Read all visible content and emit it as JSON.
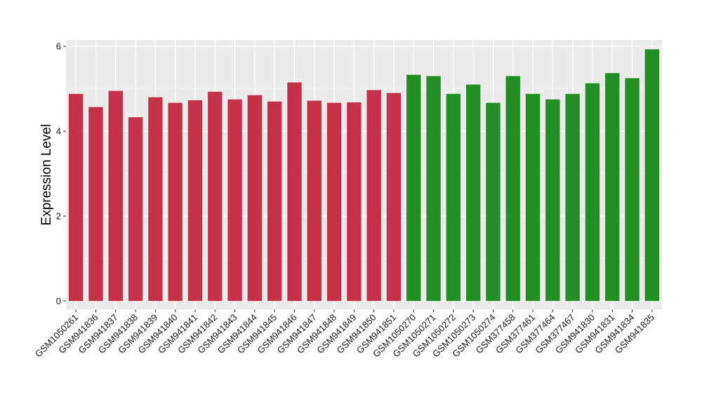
{
  "chart_data": {
    "type": "bar",
    "title": "",
    "xlabel": "",
    "ylabel": "Expression Level",
    "ylim": [
      -0.2,
      6.15
    ],
    "yticks": [
      0,
      2,
      4,
      6
    ],
    "grid": true,
    "legend": "none",
    "categories": [
      "GSM1050261",
      "GSM941836",
      "GSM941837",
      "GSM941838",
      "GSM941839",
      "GSM941840",
      "GSM941841",
      "GSM941842",
      "GSM941843",
      "GSM941844",
      "GSM941845",
      "GSM941846",
      "GSM941847",
      "GSM941848",
      "GSM941849",
      "GSM941850",
      "GSM941851",
      "GSM1050270",
      "GSM1050271",
      "GSM1050272",
      "GSM1050273",
      "GSM1050274",
      "GSM377458",
      "GSM377461",
      "GSM377464",
      "GSM377467",
      "GSM941830",
      "GSM941831",
      "GSM941834",
      "GSM941835"
    ],
    "values": [
      4.88,
      4.57,
      4.95,
      4.33,
      4.8,
      4.67,
      4.73,
      4.93,
      4.75,
      4.85,
      4.7,
      5.15,
      4.72,
      4.67,
      4.68,
      4.97,
      4.9,
      5.33,
      5.3,
      4.88,
      5.1,
      4.67,
      5.3,
      4.88,
      4.75,
      4.88,
      5.13,
      5.37,
      5.25,
      5.93
    ],
    "bar_colors": [
      "#c6314a",
      "#c6314a",
      "#c6314a",
      "#c6314a",
      "#c6314a",
      "#c6314a",
      "#c6314a",
      "#c6314a",
      "#c6314a",
      "#c6314a",
      "#c6314a",
      "#c6314a",
      "#c6314a",
      "#c6314a",
      "#c6314a",
      "#c6314a",
      "#c6314a",
      "#238e23",
      "#238e23",
      "#238e23",
      "#238e23",
      "#238e23",
      "#238e23",
      "#238e23",
      "#238e23",
      "#238e23",
      "#238e23",
      "#238e23",
      "#238e23",
      "#238e23"
    ],
    "colors": {
      "panel_background": "#ebebeb",
      "grid_major": "#ffffff",
      "grid_minor": "#f5f5f5",
      "tick": "#333333"
    }
  }
}
